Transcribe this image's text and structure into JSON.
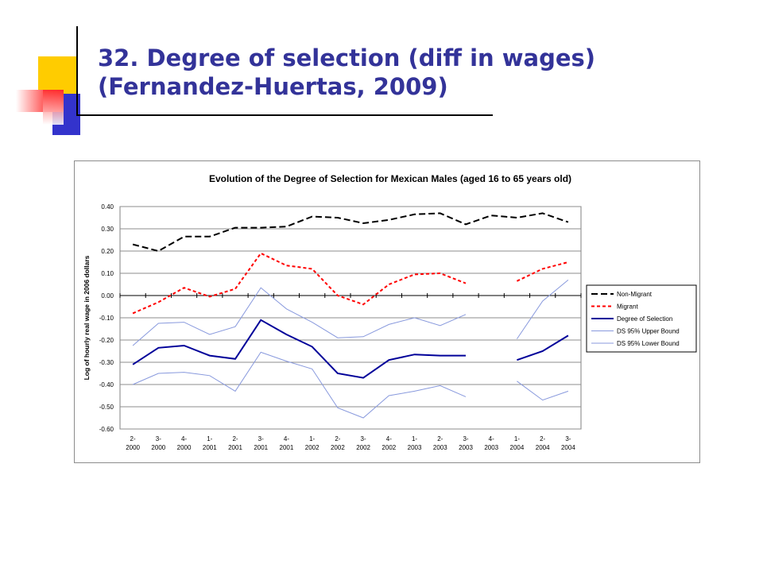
{
  "slide": {
    "title_line1": "32. Degree of selection (diff in wages)",
    "title_line2": "(Fernandez-Huertas, 2009)"
  },
  "colors": {
    "title": "#333399",
    "deco_yellow": "#ffcc00",
    "deco_blue": "#3333cc",
    "deco_red": "#ff3333"
  },
  "chart_data": {
    "type": "line",
    "title": "Evolution of the Degree of Selection for Mexican Males (aged 16 to 65 years old)",
    "xlabel": "",
    "ylabel": "Log of hourly real wage in 2006 dollars",
    "ylim": [
      -0.6,
      0.4
    ],
    "ytick_step": 0.1,
    "yticks": [
      "0.40",
      "0.30",
      "0.20",
      "0.10",
      "0.00",
      "-0.10",
      "-0.20",
      "-0.30",
      "-0.40",
      "-0.50",
      "-0.60"
    ],
    "grid": "horizontal",
    "legend_position": "right",
    "categories": [
      [
        "2-",
        "2000"
      ],
      [
        "3-",
        "2000"
      ],
      [
        "4-",
        "2000"
      ],
      [
        "1-",
        "2001"
      ],
      [
        "2-",
        "2001"
      ],
      [
        "3-",
        "2001"
      ],
      [
        "4-",
        "2001"
      ],
      [
        "1-",
        "2002"
      ],
      [
        "2-",
        "2002"
      ],
      [
        "3-",
        "2002"
      ],
      [
        "4-",
        "2002"
      ],
      [
        "1-",
        "2003"
      ],
      [
        "2-",
        "2003"
      ],
      [
        "3-",
        "2003"
      ],
      [
        "4-",
        "2003"
      ],
      [
        "1-",
        "2004"
      ],
      [
        "2-",
        "2004"
      ],
      [
        "3-",
        "2004"
      ]
    ],
    "series": [
      {
        "name": "Non-Migrant",
        "color": "#000000",
        "dash": "dashed-long",
        "width": 2,
        "values": [
          0.23,
          0.2,
          0.265,
          0.265,
          0.305,
          0.305,
          0.31,
          0.355,
          0.35,
          0.325,
          0.34,
          0.365,
          0.37,
          0.32,
          0.36,
          0.35,
          0.37,
          0.33
        ]
      },
      {
        "name": "Migrant",
        "color": "#ff0000",
        "dash": "dashed-short",
        "width": 2,
        "values": [
          -0.08,
          -0.03,
          0.035,
          -0.005,
          0.03,
          0.19,
          0.135,
          0.12,
          0.0,
          -0.04,
          0.05,
          0.095,
          0.1,
          0.055,
          null,
          0.065,
          0.12,
          0.15
        ]
      },
      {
        "name": "Degree of Selection",
        "color": "#000099",
        "dash": "solid",
        "width": 2,
        "values": [
          -0.31,
          -0.235,
          -0.225,
          -0.27,
          -0.285,
          -0.11,
          -0.175,
          -0.23,
          -0.35,
          -0.37,
          -0.29,
          -0.265,
          -0.27,
          -0.27,
          null,
          -0.29,
          -0.25,
          -0.18
        ]
      },
      {
        "name": "DS 95% Upper Bound",
        "color": "#8899dd",
        "dash": "solid",
        "width": 1,
        "values": [
          -0.225,
          -0.125,
          -0.12,
          -0.175,
          -0.14,
          0.035,
          -0.06,
          -0.12,
          -0.19,
          -0.185,
          -0.13,
          -0.1,
          -0.135,
          -0.085,
          null,
          -0.195,
          -0.025,
          0.07
        ]
      },
      {
        "name": "DS 95% Lower Bound",
        "color": "#8899dd",
        "dash": "solid",
        "width": 1,
        "values": [
          -0.4,
          -0.35,
          -0.345,
          -0.36,
          -0.43,
          -0.255,
          -0.295,
          -0.33,
          -0.505,
          -0.55,
          -0.45,
          -0.43,
          -0.405,
          -0.455,
          null,
          -0.385,
          -0.47,
          -0.43
        ]
      }
    ]
  }
}
